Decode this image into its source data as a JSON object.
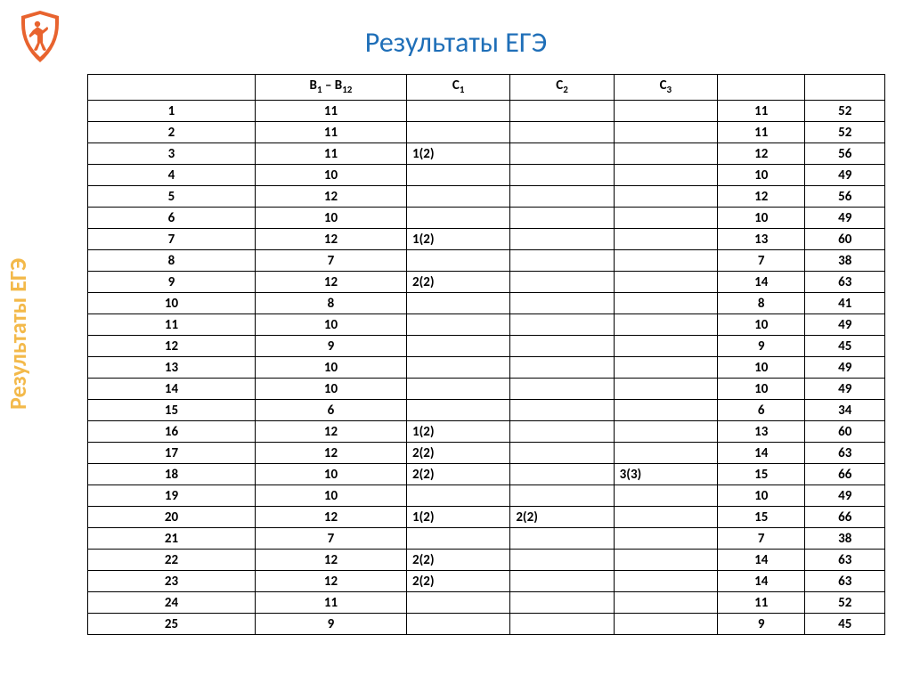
{
  "title": "Результаты ЕГЭ",
  "side_label": "Результаты ЕГЭ",
  "logo": {
    "shield_color": "#e8632e",
    "inner_color": "#ffffff",
    "figure_color": "#e8632e"
  },
  "table": {
    "headers": [
      "",
      "B₁ – B₁₂",
      "C₁",
      "C₂",
      "C₃",
      "",
      ""
    ],
    "header_html": [
      "",
      "B<sub>1</sub> – B<sub>12</sub>",
      "C<sub>1</sub>",
      "C<sub>2</sub>",
      "C<sub>3</sub>",
      "",
      ""
    ],
    "col_classes": [
      "idx",
      "b12",
      "c",
      "c",
      "c",
      "sum",
      "sc"
    ],
    "rows": [
      [
        "1",
        "11",
        "",
        "",
        "",
        "11",
        "52"
      ],
      [
        "2",
        "11",
        "",
        "",
        "",
        "11",
        "52"
      ],
      [
        "3",
        "11",
        "1(2)",
        "",
        "",
        "12",
        "56"
      ],
      [
        "4",
        "10",
        "",
        "",
        "",
        "10",
        "49"
      ],
      [
        "5",
        "12",
        "",
        "",
        "",
        "12",
        "56"
      ],
      [
        "6",
        "10",
        "",
        "",
        "",
        "10",
        "49"
      ],
      [
        "7",
        "12",
        "1(2)",
        "",
        "",
        "13",
        "60"
      ],
      [
        "8",
        "7",
        "",
        "",
        "",
        "7",
        "38"
      ],
      [
        "9",
        "12",
        "2(2)",
        "",
        "",
        "14",
        "63"
      ],
      [
        "10",
        "8",
        "",
        "",
        "",
        "8",
        "41"
      ],
      [
        "11",
        "10",
        "",
        "",
        "",
        "10",
        "49"
      ],
      [
        "12",
        "9",
        "",
        "",
        "",
        "9",
        "45"
      ],
      [
        "13",
        "10",
        "",
        "",
        "",
        "10",
        "49"
      ],
      [
        "14",
        "10",
        "",
        "",
        "",
        "10",
        "49"
      ],
      [
        "15",
        "6",
        "",
        "",
        "",
        "6",
        "34"
      ],
      [
        "16",
        "12",
        "1(2)",
        "",
        "",
        "13",
        "60"
      ],
      [
        "17",
        "12",
        "2(2)",
        "",
        "",
        "14",
        "63"
      ],
      [
        "18",
        "10",
        "2(2)",
        "",
        "3(3)",
        "15",
        "66"
      ],
      [
        "19",
        "10",
        "",
        "",
        "",
        "10",
        "49"
      ],
      [
        "20",
        "12",
        "1(2)",
        "2(2)",
        "",
        "15",
        "66"
      ],
      [
        "21",
        "7",
        "",
        "",
        "",
        "7",
        "38"
      ],
      [
        "22",
        "12",
        "2(2)",
        "",
        "",
        "14",
        "63"
      ],
      [
        "23",
        "12",
        "2(2)",
        "",
        "",
        "14",
        "63"
      ],
      [
        "24",
        "11",
        "",
        "",
        "",
        "11",
        "52"
      ],
      [
        "25",
        "9",
        "",
        "",
        "",
        "9",
        "45"
      ]
    ]
  },
  "styling": {
    "title_color": "#1f6fb8",
    "title_fontsize": 32,
    "side_label_color": "#f3b94a",
    "side_label_fontsize": 26,
    "border_color": "#000000",
    "cell_font_size": 15,
    "background_color": "#ffffff",
    "font_family": "Calibri"
  }
}
